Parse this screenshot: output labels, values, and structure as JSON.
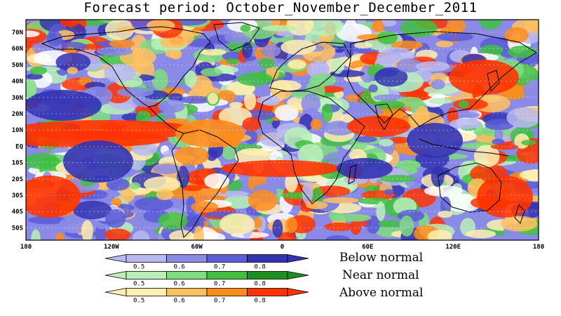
{
  "title": "Forecast period:  October_November_December_2011",
  "lat_labels": [
    "70N",
    "60N",
    "50N",
    "40N",
    "30N",
    "20N",
    "10N",
    "EQ",
    "10S",
    "20S",
    "30S",
    "40S",
    "50S"
  ],
  "lon_labels": [
    "180",
    "120W",
    "60W",
    "0",
    "60E",
    "120E",
    "180"
  ],
  "legend": {
    "below": {
      "label": "Below normal",
      "ticks": [
        "0.5",
        "0.6",
        "0.7",
        "0.8"
      ],
      "colors": [
        "#b8b8f0",
        "#8a8ae6",
        "#5c5cd6",
        "#3333b3"
      ]
    },
    "near": {
      "label": "Near normal",
      "ticks": [
        "0.5",
        "0.6",
        "0.7",
        "0.8"
      ],
      "colors": [
        "#b9f0b9",
        "#7fdc7f",
        "#40bf40",
        "#1e8f1e"
      ]
    },
    "above": {
      "label": "Above normal",
      "ticks": [
        "0.5",
        "0.6",
        "0.7",
        "0.8"
      ],
      "colors": [
        "#fff0b0",
        "#ffc060",
        "#ff8c1a",
        "#ff3300"
      ]
    }
  }
}
